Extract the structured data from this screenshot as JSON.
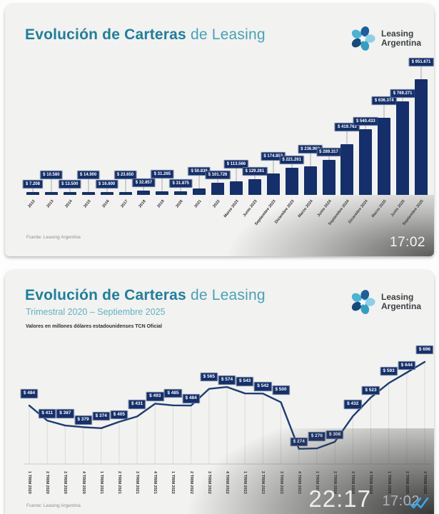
{
  "logo": {
    "line1": "Leasing",
    "line2": "Argentina"
  },
  "top_card": {
    "title_accent": "Evolución de Carteras",
    "title_rest": "de Leasing",
    "video_time": "17:02"
  },
  "bottom_card": {
    "title_accent": "Evolución de Carteras",
    "title_rest": "de Leasing",
    "subtitle": "Trimestral 2020 – Septiembre 2025",
    "note": "Valores en millones dólares estadounidenses TCN Oficial",
    "video_time": "22:17",
    "message_time": "17:02",
    "read_receipt_icon": "double-check"
  },
  "colors": {
    "navy": "#142f6b",
    "title_teal": "#1d7f9e",
    "check_blue": "#35a8ef",
    "card_bg": "#f2f2f0"
  },
  "chart_data": [
    {
      "type": "bar",
      "title": "Evolución de Carteras de Leasing",
      "source": "Fuente: Leasing Argentina",
      "categories": [
        "2012",
        "2013",
        "2014",
        "2015",
        "2016",
        "2017",
        "2018",
        "2019",
        "2020",
        "2021",
        "2022",
        "Marzo 2023",
        "Junio 2023",
        "Septiembre 2023",
        "Diciembre 2023",
        "Marzo 2024",
        "Junio 2024",
        "Septiembre 2024",
        "Diciembre 2024",
        "Marzo 2025",
        "Junio 2025",
        "Septiembre 2025"
      ],
      "values": [
        7208,
        10580,
        13500,
        14900,
        16600,
        23650,
        32857,
        31265,
        31875,
        50836,
        101726,
        113566,
        129261,
        174853,
        221261,
        236963,
        289317,
        419763,
        540433,
        636374,
        769271,
        951671
      ],
      "labels": [
        "$ 7.208",
        "$ 10.580",
        "$ 13.500",
        "$ 14.900",
        "$ 16.600",
        "$ 23.650",
        "$ 32.857",
        "$ 31.265",
        "$ 31.875",
        "$ 50.836",
        "$ 101.726",
        "$ 113.566",
        "$ 129.261",
        "$ 174.853",
        "$ 221.261",
        "$ 236.963",
        "$ 289.317",
        "$ 419.763",
        "$ 540.433",
        "$ 636.374",
        "$ 769.271",
        "$ 951.671"
      ],
      "bar_color": "#142f6b",
      "label_bg": "#142f6b",
      "label_text_color": "#ffffff",
      "ylim": [
        0,
        1000000
      ],
      "grid": false,
      "legend": false
    },
    {
      "type": "line",
      "title": "Evolución de Carteras de Leasing",
      "subtitle": "Trimestral 2020 – Septiembre 2025",
      "note": "Valores en millones dólares estadounidenses TCN Oficial",
      "source": "Fuente: Leasing Argentina",
      "categories": [
        "1 TRIM 2020",
        "2 TRIM 2020",
        "3 TRIM 2020",
        "4 TRIM 2020",
        "1 TRIM 2021",
        "2 TRIM 2021",
        "3 TRIM 2021",
        "4 TRIM 2021",
        "1 TRIM 2022",
        "2 TRIM 2022",
        "3 TRIM 2022",
        "4 TRIM 2022",
        "1 TRIM 2023",
        "2 TRIM 2023",
        "3 TRIM 2023",
        "4 TRIM 2023",
        "1 TRIM 2024",
        "2 TRIM 2024",
        "3 TRIM 2024",
        "4 TRIM 2024",
        "1 TRIM 2025",
        "2 TRIM 2025",
        "3 TRIM 2025"
      ],
      "values": [
        484,
        411,
        387,
        379,
        374,
        405,
        431,
        493,
        485,
        484,
        565,
        574,
        543,
        542,
        500,
        274,
        276,
        308,
        432,
        523,
        593,
        644,
        696
      ],
      "labels": [
        "$ 484",
        "$ 411",
        "$ 387",
        "$ 379",
        "$ 374",
        "$ 405",
        "$ 431",
        "$ 493",
        "$ 485",
        "$ 484",
        "$ 565",
        "$ 574",
        "$ 543",
        "$ 542",
        "$ 500",
        "$ 274",
        "$ 276",
        "$ 308",
        "$ 432",
        "$ 523",
        "$ 593",
        "$ 644",
        "$ 696"
      ],
      "line_color": "#1d3c73",
      "label_bg": "#142f6b",
      "label_text_color": "#ffffff",
      "ylim": [
        200,
        750
      ],
      "grid": "vertical",
      "legend": false
    }
  ]
}
